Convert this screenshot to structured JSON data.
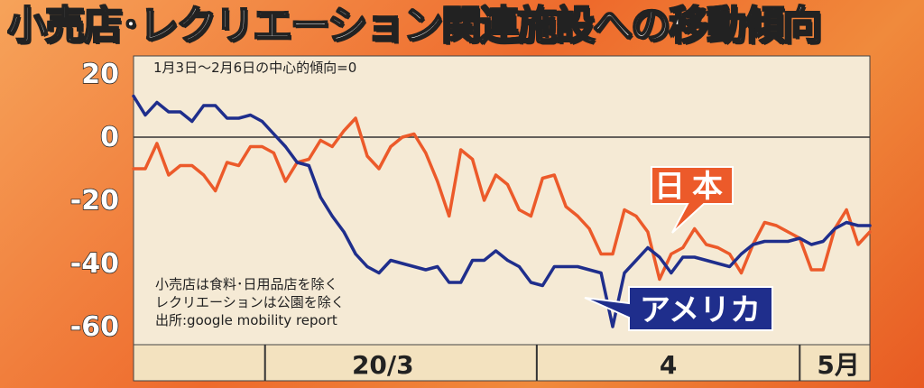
{
  "title": "小売店･レクリエーション関連施設への移動傾向",
  "chart_data": {
    "type": "line",
    "baseline_note": "1月3日〜2月6日の中心的傾向=0",
    "notes": [
      "小売店は食料･日用品店を除く",
      "レクリエーションは公園を除く",
      "出所:google mobility report"
    ],
    "x_tick_labels": [
      "20/3",
      "4",
      "5月"
    ],
    "y_ticks": [
      20,
      0,
      -20,
      -40,
      -60
    ],
    "ylim": [
      -65,
      22
    ],
    "x_start": "2020-02-15",
    "x_end": "2020-05-09",
    "series": [
      {
        "name": "日本",
        "color": "#ec5a2a",
        "values": [
          -10,
          -10,
          -2,
          -12,
          -9,
          -9,
          -12,
          -17,
          -8,
          -9,
          -3,
          -3,
          -5,
          -14,
          -8,
          -7,
          -1,
          -3,
          2,
          6,
          -6,
          -10,
          -3,
          0,
          1,
          -5,
          -14,
          -25,
          -4,
          -7,
          -20,
          -12,
          -15,
          -23,
          -25,
          -13,
          -12,
          -22,
          -25,
          -29,
          -37,
          -37,
          -23,
          -25,
          -30,
          -45,
          -37,
          -35,
          -29,
          -34,
          -35,
          -37,
          -43,
          -34,
          -27,
          -28,
          -30,
          -32,
          -42,
          -42,
          -29,
          -23,
          -34,
          -30
        ]
      },
      {
        "name": "アメリカ",
        "color": "#1f2e8c",
        "values": [
          13,
          7,
          11,
          8,
          8,
          5,
          10,
          10,
          6,
          6,
          7,
          5,
          1,
          -3,
          -8,
          -9,
          -19,
          -25,
          -30,
          -37,
          -41,
          -43,
          -39,
          -40,
          -41,
          -42,
          -41,
          -46,
          -46,
          -39,
          -39,
          -36,
          -39,
          -41,
          -46,
          -47,
          -41,
          -41,
          -41,
          -42,
          -43,
          -60,
          -43,
          -39,
          -35,
          -38,
          -43,
          -38,
          -38,
          -39,
          -40,
          -41,
          -37,
          -34,
          -33,
          -33,
          -33,
          -32,
          -34,
          -33,
          -29,
          -27,
          -28,
          -28
        ]
      }
    ]
  }
}
